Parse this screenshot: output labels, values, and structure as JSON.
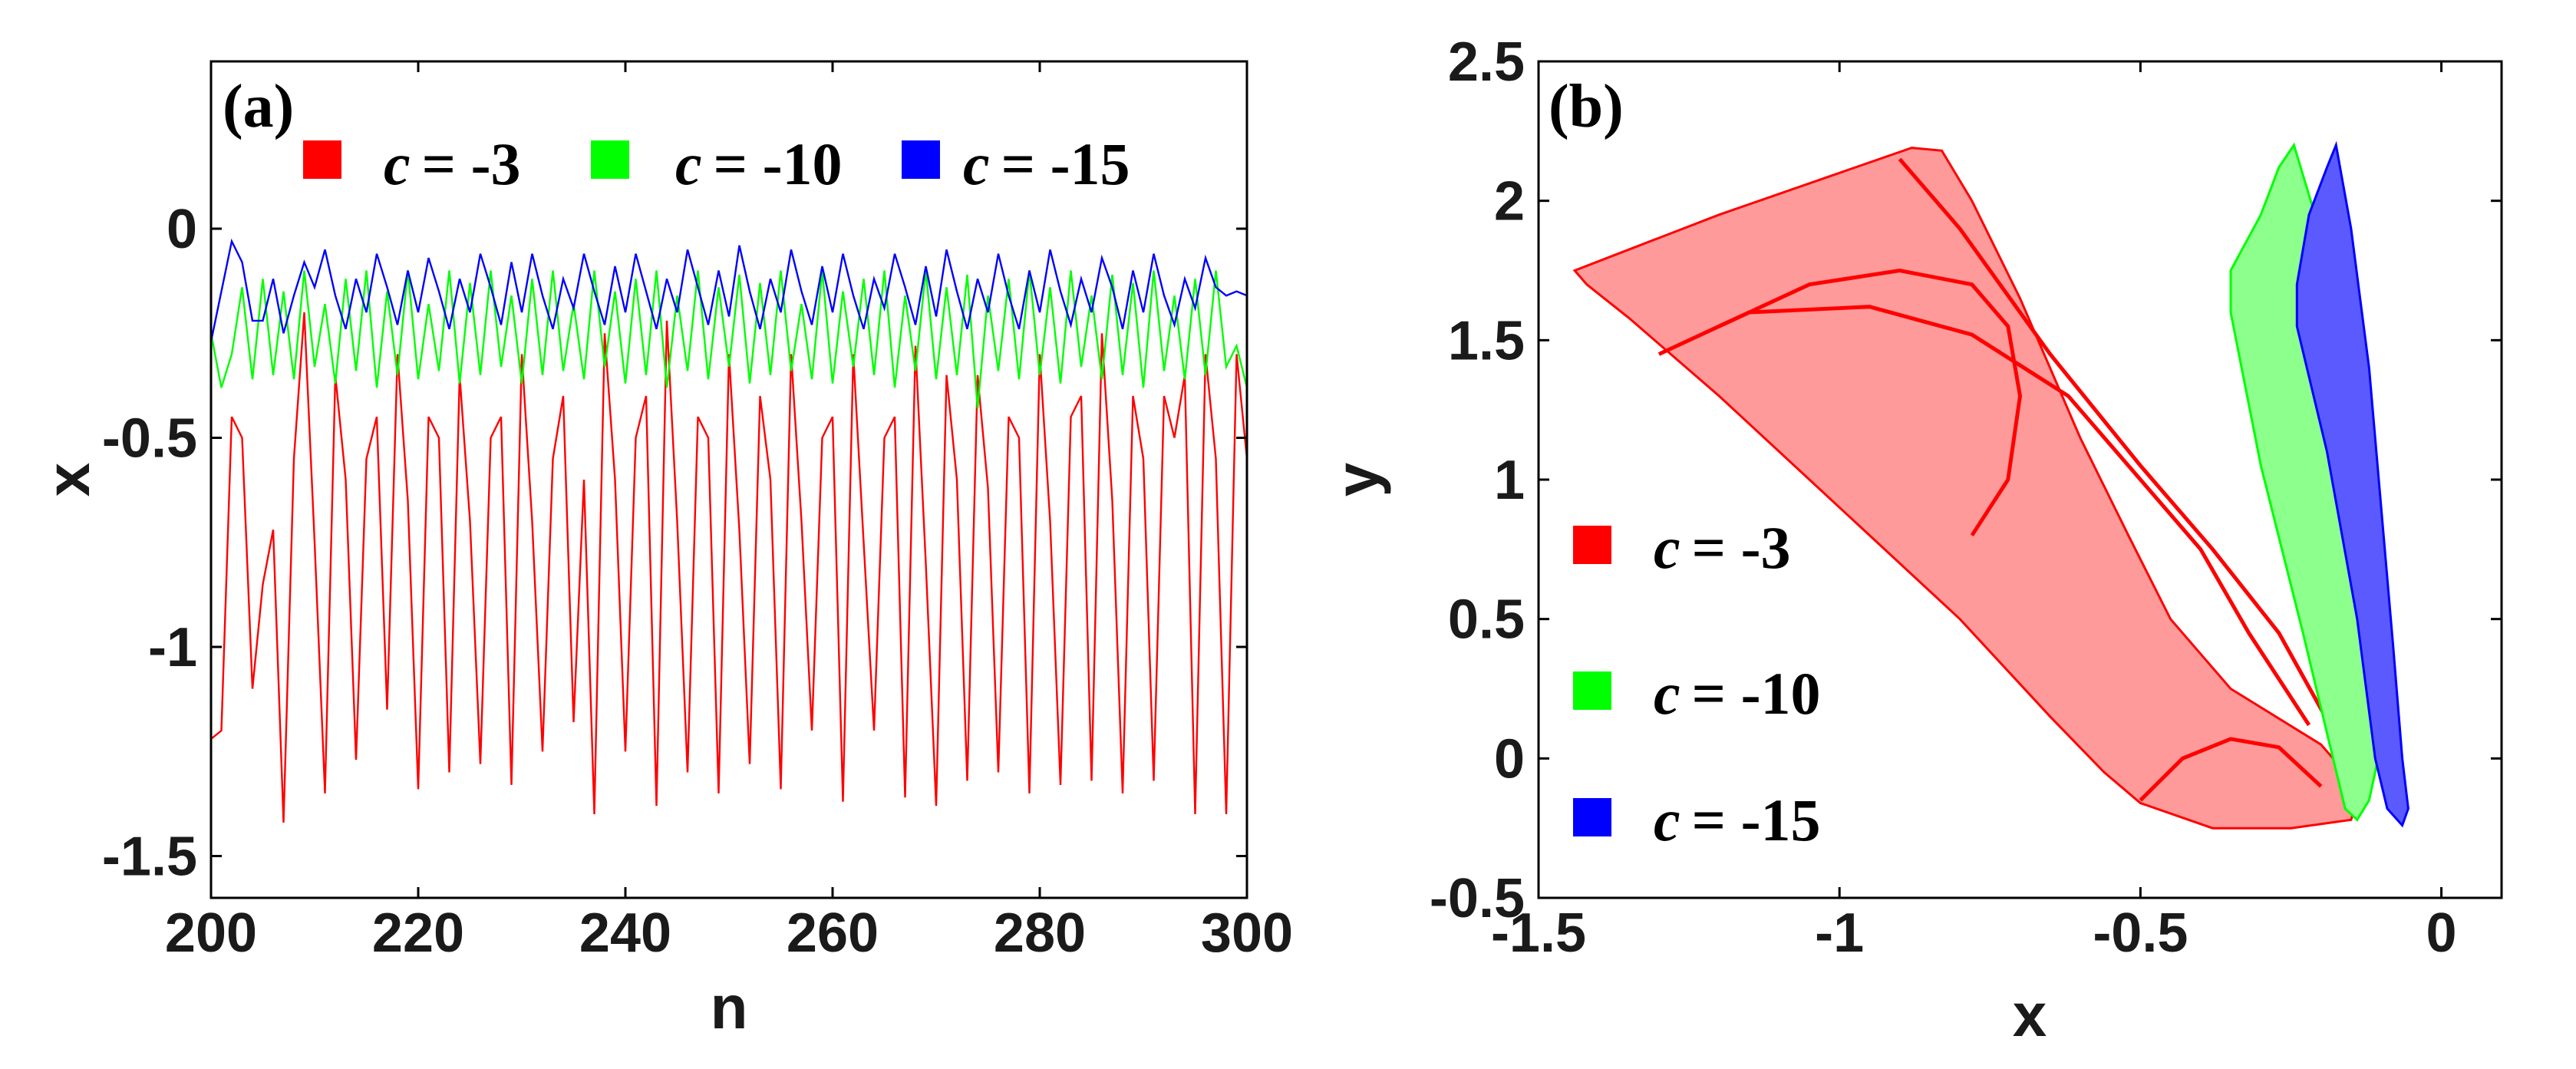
{
  "chart_data": [
    {
      "type": "line",
      "panel_label": "(a)",
      "xlabel": "n",
      "ylabel": "x",
      "xlim": [
        200,
        300
      ],
      "ylim": [
        -1.6,
        0.4
      ],
      "xticks": [
        200,
        220,
        240,
        260,
        280,
        300
      ],
      "yticks": [
        -1.5,
        -1,
        -0.5,
        0
      ],
      "xtick_labels": [
        "200",
        "220",
        "240",
        "260",
        "280",
        "300"
      ],
      "ytick_labels": [
        "-1.5",
        "-1",
        "-0.5",
        "0"
      ],
      "legend_position": "top",
      "series": [
        {
          "name": "c = -3",
          "legend_var": "c",
          "legend_value": "= -3",
          "color": "#ff0000",
          "x": [
            200,
            201,
            202,
            203,
            204,
            205,
            206,
            207,
            208,
            209,
            210,
            211,
            212,
            213,
            214,
            215,
            216,
            217,
            218,
            219,
            220,
            221,
            222,
            223,
            224,
            225,
            226,
            227,
            228,
            229,
            230,
            231,
            232,
            233,
            234,
            235,
            236,
            237,
            238,
            239,
            240,
            241,
            242,
            243,
            244,
            245,
            246,
            247,
            248,
            249,
            250,
            251,
            252,
            253,
            254,
            255,
            256,
            257,
            258,
            259,
            260,
            261,
            262,
            263,
            264,
            265,
            266,
            267,
            268,
            269,
            270,
            271,
            272,
            273,
            274,
            275,
            276,
            277,
            278,
            279,
            280,
            281,
            282,
            283,
            284,
            285,
            286,
            287,
            288,
            289,
            290,
            291,
            292,
            293,
            294,
            295,
            296,
            297,
            298,
            299,
            300
          ],
          "y": [
            -1.22,
            -1.2,
            -0.45,
            -0.5,
            -1.1,
            -0.85,
            -0.72,
            -1.42,
            -0.55,
            -0.2,
            -0.75,
            -1.35,
            -0.35,
            -0.6,
            -1.27,
            -0.55,
            -0.45,
            -1.15,
            -0.3,
            -0.65,
            -1.34,
            -0.45,
            -0.5,
            -1.3,
            -0.35,
            -0.7,
            -1.28,
            -0.5,
            -0.45,
            -1.33,
            -0.3,
            -0.7,
            -1.25,
            -0.55,
            -0.4,
            -1.18,
            -0.6,
            -1.4,
            -0.25,
            -0.6,
            -1.25,
            -0.5,
            -0.4,
            -1.38,
            -0.22,
            -0.7,
            -1.3,
            -0.45,
            -0.5,
            -1.35,
            -0.3,
            -0.72,
            -1.28,
            -0.4,
            -0.6,
            -1.34,
            -0.3,
            -0.7,
            -1.2,
            -0.5,
            -0.45,
            -1.37,
            -0.3,
            -0.75,
            -1.2,
            -0.5,
            -0.45,
            -1.36,
            -0.28,
            -0.8,
            -1.38,
            -0.35,
            -0.6,
            -1.32,
            -0.35,
            -0.62,
            -1.3,
            -0.45,
            -0.5,
            -1.35,
            -0.3,
            -0.7,
            -1.33,
            -0.45,
            -0.4,
            -1.32,
            -0.25,
            -0.65,
            -1.35,
            -0.4,
            -0.55,
            -1.32,
            -0.4,
            -0.5,
            -0.35,
            -1.4,
            -0.3,
            -0.55,
            -1.4,
            -0.3,
            -0.55
          ]
        },
        {
          "name": "c = -10",
          "legend_var": "c",
          "legend_value": "= -10",
          "color": "#00ff00",
          "x": [
            200,
            201,
            202,
            203,
            204,
            205,
            206,
            207,
            208,
            209,
            210,
            211,
            212,
            213,
            214,
            215,
            216,
            217,
            218,
            219,
            220,
            221,
            222,
            223,
            224,
            225,
            226,
            227,
            228,
            229,
            230,
            231,
            232,
            233,
            234,
            235,
            236,
            237,
            238,
            239,
            240,
            241,
            242,
            243,
            244,
            245,
            246,
            247,
            248,
            249,
            250,
            251,
            252,
            253,
            254,
            255,
            256,
            257,
            258,
            259,
            260,
            261,
            262,
            263,
            264,
            265,
            266,
            267,
            268,
            269,
            270,
            271,
            272,
            273,
            274,
            275,
            276,
            277,
            278,
            279,
            280,
            281,
            282,
            283,
            284,
            285,
            286,
            287,
            288,
            289,
            290,
            291,
            292,
            293,
            294,
            295,
            296,
            297,
            298,
            299,
            300
          ],
          "y": [
            -0.25,
            -0.38,
            -0.3,
            -0.14,
            -0.36,
            -0.12,
            -0.35,
            -0.15,
            -0.36,
            -0.1,
            -0.33,
            -0.18,
            -0.37,
            -0.12,
            -0.34,
            -0.1,
            -0.38,
            -0.15,
            -0.35,
            -0.1,
            -0.36,
            -0.18,
            -0.34,
            -0.1,
            -0.37,
            -0.13,
            -0.35,
            -0.1,
            -0.33,
            -0.16,
            -0.37,
            -0.12,
            -0.35,
            -0.1,
            -0.34,
            -0.18,
            -0.36,
            -0.1,
            -0.33,
            -0.15,
            -0.37,
            -0.12,
            -0.35,
            -0.1,
            -0.38,
            -0.16,
            -0.34,
            -0.1,
            -0.36,
            -0.14,
            -0.33,
            -0.11,
            -0.37,
            -0.13,
            -0.35,
            -0.1,
            -0.34,
            -0.18,
            -0.36,
            -0.1,
            -0.37,
            -0.15,
            -0.33,
            -0.12,
            -0.35,
            -0.1,
            -0.38,
            -0.16,
            -0.34,
            -0.1,
            -0.36,
            -0.14,
            -0.35,
            -0.11,
            -0.43,
            -0.16,
            -0.34,
            -0.12,
            -0.36,
            -0.1,
            -0.35,
            -0.14,
            -0.37,
            -0.1,
            -0.33,
            -0.16,
            -0.36,
            -0.11,
            -0.35,
            -0.13,
            -0.38,
            -0.1,
            -0.34,
            -0.16,
            -0.36,
            -0.12,
            -0.35,
            -0.1,
            -0.33,
            -0.28,
            -0.38
          ]
        },
        {
          "name": "c = -15",
          "legend_var": "c",
          "legend_value": "= -15",
          "color": "#0000ff",
          "x": [
            200,
            201,
            202,
            203,
            204,
            205,
            206,
            207,
            208,
            209,
            210,
            211,
            212,
            213,
            214,
            215,
            216,
            217,
            218,
            219,
            220,
            221,
            222,
            223,
            224,
            225,
            226,
            227,
            228,
            229,
            230,
            231,
            232,
            233,
            234,
            235,
            236,
            237,
            238,
            239,
            240,
            241,
            242,
            243,
            244,
            245,
            246,
            247,
            248,
            249,
            250,
            251,
            252,
            253,
            254,
            255,
            256,
            257,
            258,
            259,
            260,
            261,
            262,
            263,
            264,
            265,
            266,
            267,
            268,
            269,
            270,
            271,
            272,
            273,
            274,
            275,
            276,
            277,
            278,
            279,
            280,
            281,
            282,
            283,
            284,
            285,
            286,
            287,
            288,
            289,
            290,
            291,
            292,
            293,
            294,
            295,
            296,
            297,
            298,
            299,
            300
          ],
          "y": [
            -0.27,
            -0.15,
            -0.03,
            -0.08,
            -0.22,
            -0.22,
            -0.12,
            -0.25,
            -0.16,
            -0.08,
            -0.14,
            -0.05,
            -0.16,
            -0.24,
            -0.12,
            -0.2,
            -0.06,
            -0.14,
            -0.23,
            -0.1,
            -0.2,
            -0.07,
            -0.15,
            -0.24,
            -0.12,
            -0.2,
            -0.06,
            -0.14,
            -0.23,
            -0.08,
            -0.2,
            -0.06,
            -0.16,
            -0.24,
            -0.12,
            -0.19,
            -0.06,
            -0.15,
            -0.23,
            -0.09,
            -0.2,
            -0.06,
            -0.15,
            -0.24,
            -0.12,
            -0.2,
            -0.05,
            -0.14,
            -0.23,
            -0.1,
            -0.21,
            -0.04,
            -0.15,
            -0.24,
            -0.12,
            -0.2,
            -0.05,
            -0.15,
            -0.23,
            -0.09,
            -0.2,
            -0.06,
            -0.16,
            -0.24,
            -0.12,
            -0.19,
            -0.06,
            -0.14,
            -0.23,
            -0.09,
            -0.21,
            -0.05,
            -0.15,
            -0.24,
            -0.12,
            -0.2,
            -0.06,
            -0.16,
            -0.24,
            -0.1,
            -0.2,
            -0.05,
            -0.15,
            -0.23,
            -0.12,
            -0.2,
            -0.07,
            -0.14,
            -0.24,
            -0.1,
            -0.2,
            -0.06,
            -0.16,
            -0.23,
            -0.12,
            -0.19,
            -0.07,
            -0.14,
            -0.16,
            -0.15,
            -0.16
          ]
        }
      ]
    },
    {
      "type": "scatter",
      "panel_label": "(b)",
      "xlabel": "x",
      "ylabel": "y",
      "xlim": [
        -1.5,
        0.1
      ],
      "ylim": [
        -0.5,
        2.5
      ],
      "xticks": [
        -1.5,
        -1,
        -0.5,
        0
      ],
      "yticks": [
        -0.5,
        0,
        0.5,
        1,
        1.5,
        2,
        2.5
      ],
      "xtick_labels": [
        "-1.5",
        "-1",
        "-0.5",
        "0"
      ],
      "ytick_labels": [
        "-0.5",
        "0",
        "0.5",
        "1",
        "1.5",
        "2",
        "2.5"
      ],
      "legend_position": "left",
      "series": [
        {
          "name": "c = -3",
          "legend_var": "c",
          "legend_value": "= -3",
          "color": "#ff0000",
          "outline": {
            "x": [
              -1.44,
              -1.38,
              -1.2,
              -1.0,
              -0.88,
              -0.83,
              -0.78,
              -0.7,
              -0.6,
              -0.52,
              -0.45,
              -0.35,
              -0.2,
              -0.16,
              -0.14,
              -0.15,
              -0.25,
              -0.38,
              -0.5,
              -0.56,
              -0.65,
              -0.8,
              -1.0,
              -1.2,
              -1.35,
              -1.42,
              -1.44
            ],
            "y": [
              1.75,
              1.8,
              1.95,
              2.1,
              2.19,
              2.18,
              2.0,
              1.65,
              1.15,
              0.8,
              0.5,
              0.25,
              0.05,
              -0.05,
              -0.15,
              -0.22,
              -0.25,
              -0.25,
              -0.16,
              -0.05,
              0.15,
              0.5,
              0.9,
              1.3,
              1.58,
              1.7,
              1.75
            ]
          },
          "inner_curves": [
            {
              "x": [
                -1.2,
                -1.05,
                -0.9,
                -0.78,
                -0.72,
                -0.7,
                -0.72,
                -0.78
              ],
              "y": [
                1.55,
                1.7,
                1.75,
                1.7,
                1.55,
                1.3,
                1.0,
                0.8
              ]
            },
            {
              "x": [
                -1.3,
                -1.15,
                -0.95,
                -0.78,
                -0.62,
                -0.5,
                -0.4,
                -0.32,
                -0.22
              ],
              "y": [
                1.45,
                1.6,
                1.62,
                1.52,
                1.3,
                1.0,
                0.75,
                0.45,
                0.12
              ]
            },
            {
              "x": [
                -0.9,
                -0.8,
                -0.65,
                -0.5,
                -0.38,
                -0.27,
                -0.18
              ],
              "y": [
                2.15,
                1.9,
                1.45,
                1.05,
                0.75,
                0.45,
                0.1
              ]
            },
            {
              "x": [
                -0.5,
                -0.43,
                -0.35,
                -0.27,
                -0.2
              ],
              "y": [
                -0.15,
                0.0,
                0.07,
                0.04,
                -0.1
              ]
            }
          ]
        },
        {
          "name": "c = -10",
          "legend_var": "c",
          "legend_value": "= -10",
          "color": "#00ff00",
          "outline": {
            "x": [
              -0.35,
              -0.3,
              -0.27,
              -0.245,
              -0.21,
              -0.17,
              -0.14,
              -0.115,
              -0.1,
              -0.12,
              -0.14,
              -0.16,
              -0.18,
              -0.23,
              -0.3,
              -0.35,
              -0.35
            ],
            "y": [
              1.75,
              1.95,
              2.12,
              2.2,
              1.95,
              1.5,
              1.0,
              0.5,
              0.05,
              -0.15,
              -0.22,
              -0.18,
              0.0,
              0.45,
              1.05,
              1.6,
              1.75
            ]
          }
        },
        {
          "name": "c = -15",
          "legend_var": "c",
          "legend_value": "= -15",
          "color": "#0000ff",
          "outline": {
            "x": [
              -0.24,
              -0.22,
              -0.19,
              -0.175,
              -0.15,
              -0.12,
              -0.1,
              -0.08,
              -0.065,
              -0.055,
              -0.065,
              -0.09,
              -0.11,
              -0.14,
              -0.19,
              -0.24,
              -0.24
            ],
            "y": [
              1.7,
              1.95,
              2.12,
              2.2,
              1.9,
              1.4,
              0.9,
              0.4,
              0.0,
              -0.18,
              -0.24,
              -0.18,
              0.0,
              0.5,
              1.1,
              1.55,
              1.7
            ]
          }
        }
      ]
    }
  ]
}
